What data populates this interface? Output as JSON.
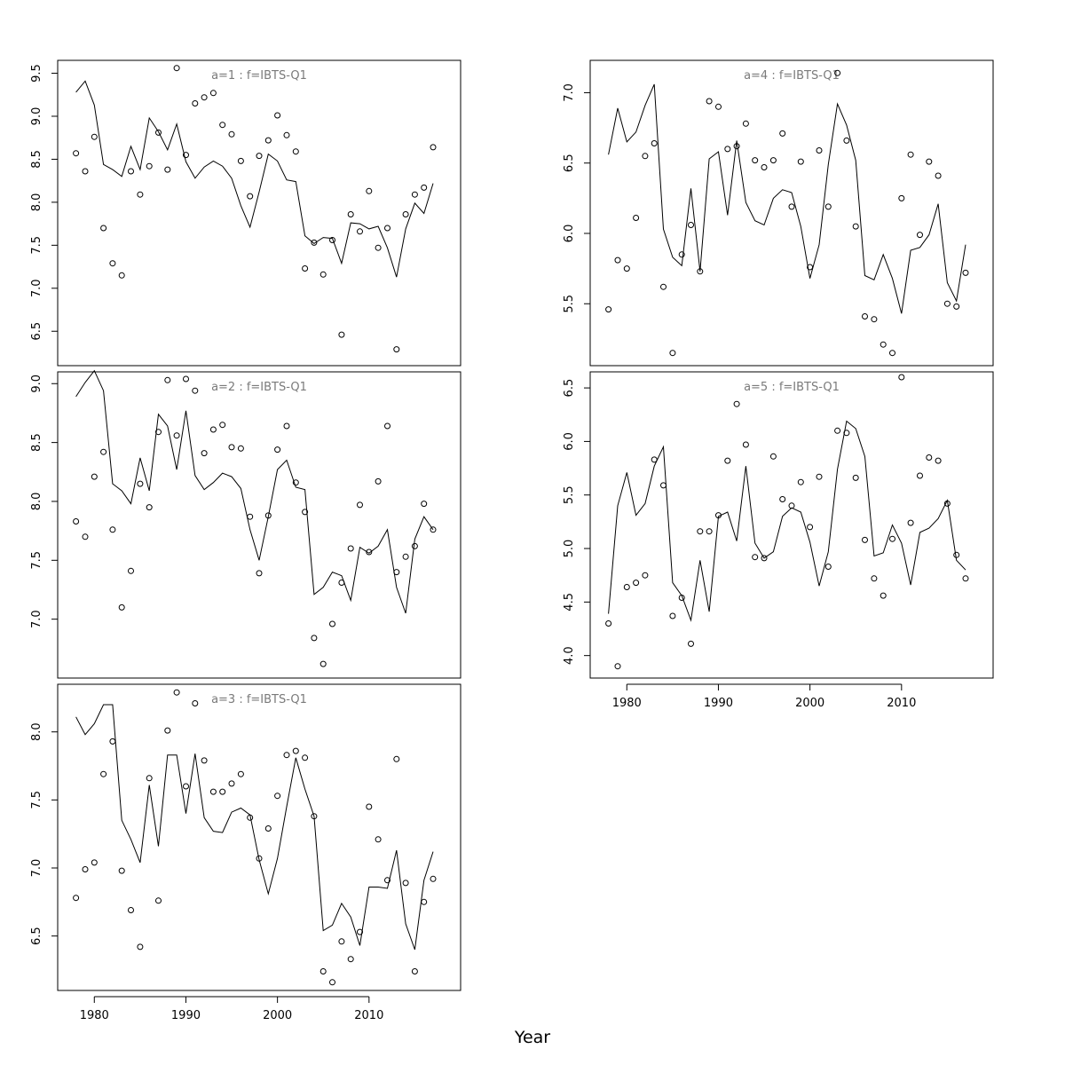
{
  "figure": {
    "xlabel": "Year"
  },
  "chart_data": [
    {
      "type": "line",
      "title": "a=1  :  f=IBTS-Q1",
      "xlabel": "Year",
      "ylabel": "",
      "xlim": [
        1976,
        2020
      ],
      "ylim": [
        6.1,
        9.65
      ],
      "xticks": [
        1980,
        1990,
        2000,
        2010
      ],
      "yticks": [
        6.5,
        7.0,
        7.5,
        8.0,
        8.5,
        9.0,
        9.5
      ],
      "show_x_axis": false,
      "x": [
        1978,
        1979,
        1980,
        1981,
        1982,
        1983,
        1984,
        1985,
        1986,
        1987,
        1988,
        1989,
        1990,
        1991,
        1992,
        1993,
        1994,
        1995,
        1996,
        1997,
        1998,
        1999,
        2000,
        2001,
        2002,
        2003,
        2004,
        2005,
        2006,
        2007,
        2008,
        2009,
        2010,
        2011,
        2012,
        2013,
        2014,
        2015,
        2016,
        2017
      ],
      "series": [
        {
          "style": "points",
          "values": [
            8.57,
            8.36,
            8.76,
            7.7,
            7.29,
            7.15,
            8.36,
            8.09,
            8.42,
            8.81,
            8.38,
            9.56,
            8.55,
            9.15,
            9.22,
            9.27,
            8.9,
            8.79,
            8.48,
            8.07,
            8.54,
            8.72,
            9.01,
            8.78,
            8.59,
            7.23,
            7.53,
            7.16,
            7.56,
            6.46,
            7.86,
            7.66,
            8.13,
            7.47,
            7.7,
            6.29,
            7.86,
            8.09,
            8.17,
            8.64
          ]
        },
        {
          "style": "line",
          "values": [
            9.28,
            9.41,
            9.13,
            8.44,
            8.38,
            8.3,
            8.65,
            8.38,
            8.98,
            8.82,
            8.61,
            8.91,
            8.47,
            8.28,
            8.41,
            8.48,
            8.42,
            8.28,
            7.96,
            7.71,
            8.12,
            8.56,
            8.48,
            8.26,
            8.24,
            7.61,
            7.52,
            7.59,
            7.58,
            7.29,
            7.76,
            7.75,
            7.69,
            7.72,
            7.47,
            7.13,
            7.69,
            7.99,
            7.87,
            8.22
          ]
        }
      ]
    },
    {
      "type": "line",
      "title": "a=2  :  f=IBTS-Q1",
      "xlabel": "Year",
      "ylabel": "",
      "xlim": [
        1976,
        2020
      ],
      "ylim": [
        6.5,
        9.1
      ],
      "xticks": [
        1980,
        1990,
        2000,
        2010
      ],
      "yticks": [
        7.0,
        7.5,
        8.0,
        8.5,
        9.0
      ],
      "show_x_axis": false,
      "x": [
        1978,
        1979,
        1980,
        1981,
        1982,
        1983,
        1984,
        1985,
        1986,
        1987,
        1988,
        1989,
        1990,
        1991,
        1992,
        1993,
        1994,
        1995,
        1996,
        1997,
        1998,
        1999,
        2000,
        2001,
        2002,
        2003,
        2004,
        2005,
        2006,
        2007,
        2008,
        2009,
        2010,
        2011,
        2012,
        2013,
        2014,
        2015,
        2016,
        2017
      ],
      "series": [
        {
          "style": "points",
          "values": [
            7.83,
            7.7,
            8.21,
            8.42,
            7.76,
            7.1,
            7.41,
            8.15,
            7.95,
            8.59,
            9.03,
            8.56,
            9.04,
            8.94,
            8.41,
            8.61,
            8.65,
            8.46,
            8.45,
            7.87,
            7.39,
            7.88,
            8.44,
            8.64,
            8.16,
            7.91,
            6.84,
            6.62,
            6.96,
            7.31,
            7.6,
            7.97,
            7.57,
            8.17,
            8.64,
            7.4,
            7.53,
            7.62,
            7.98,
            7.76
          ]
        },
        {
          "style": "line",
          "values": [
            8.89,
            9.01,
            9.11,
            8.94,
            8.15,
            8.09,
            7.98,
            8.37,
            8.09,
            8.74,
            8.64,
            8.27,
            8.77,
            8.22,
            8.1,
            8.16,
            8.24,
            8.21,
            8.11,
            7.76,
            7.5,
            7.87,
            8.27,
            8.35,
            8.12,
            8.1,
            7.21,
            7.27,
            7.4,
            7.37,
            7.16,
            7.61,
            7.56,
            7.62,
            7.76,
            7.27,
            7.05,
            7.68,
            7.87,
            7.76
          ]
        }
      ]
    },
    {
      "type": "line",
      "title": "a=3  :  f=IBTS-Q1",
      "xlabel": "Year",
      "ylabel": "",
      "xlim": [
        1976,
        2020
      ],
      "ylim": [
        6.1,
        8.35
      ],
      "xticks": [
        1980,
        1990,
        2000,
        2010
      ],
      "yticks": [
        6.5,
        7.0,
        7.5,
        8.0
      ],
      "show_x_axis": true,
      "x": [
        1978,
        1979,
        1980,
        1981,
        1982,
        1983,
        1984,
        1985,
        1986,
        1987,
        1988,
        1989,
        1990,
        1991,
        1992,
        1993,
        1994,
        1995,
        1996,
        1997,
        1998,
        1999,
        2000,
        2001,
        2002,
        2003,
        2004,
        2005,
        2006,
        2007,
        2008,
        2009,
        2010,
        2011,
        2012,
        2013,
        2014,
        2015,
        2016,
        2017
      ],
      "series": [
        {
          "style": "points",
          "values": [
            6.78,
            6.99,
            7.04,
            7.69,
            7.93,
            6.98,
            6.69,
            6.42,
            7.66,
            6.76,
            8.01,
            8.29,
            7.6,
            8.21,
            7.79,
            7.56,
            7.56,
            7.62,
            7.69,
            7.37,
            7.07,
            7.29,
            7.53,
            7.83,
            7.86,
            7.81,
            7.38,
            6.24,
            6.16,
            6.46,
            6.33,
            6.53,
            7.45,
            7.21,
            6.91,
            7.8,
            6.89,
            6.24,
            6.75,
            6.92
          ]
        },
        {
          "style": "line",
          "values": [
            8.11,
            7.98,
            8.06,
            8.2,
            8.2,
            7.35,
            7.21,
            7.04,
            7.61,
            7.16,
            7.83,
            7.83,
            7.4,
            7.84,
            7.37,
            7.27,
            7.26,
            7.41,
            7.44,
            7.39,
            7.06,
            6.81,
            7.07,
            7.45,
            7.81,
            7.58,
            7.38,
            6.54,
            6.58,
            6.74,
            6.64,
            6.43,
            6.86,
            6.86,
            6.85,
            7.13,
            6.59,
            6.4,
            6.91,
            7.12
          ]
        }
      ]
    },
    {
      "type": "line",
      "title": "a=4  :  f=IBTS-Q1",
      "xlabel": "Year",
      "ylabel": "",
      "xlim": [
        1976,
        2020
      ],
      "ylim": [
        5.06,
        7.23
      ],
      "xticks": [
        1980,
        1990,
        2000,
        2010
      ],
      "yticks": [
        5.5,
        6.0,
        6.5,
        7.0
      ],
      "show_x_axis": false,
      "x": [
        1978,
        1979,
        1980,
        1981,
        1982,
        1983,
        1984,
        1985,
        1986,
        1987,
        1988,
        1989,
        1990,
        1991,
        1992,
        1993,
        1994,
        1995,
        1996,
        1997,
        1998,
        1999,
        2000,
        2001,
        2002,
        2003,
        2004,
        2005,
        2006,
        2007,
        2008,
        2009,
        2010,
        2011,
        2012,
        2013,
        2014,
        2015,
        2016,
        2017
      ],
      "series": [
        {
          "style": "points",
          "values": [
            5.46,
            5.81,
            5.75,
            6.11,
            6.55,
            6.64,
            5.62,
            5.15,
            5.85,
            6.06,
            5.73,
            6.94,
            6.9,
            6.6,
            6.62,
            6.78,
            6.52,
            6.47,
            6.52,
            6.71,
            6.19,
            6.51,
            5.76,
            6.59,
            6.19,
            7.14,
            6.66,
            6.05,
            5.41,
            5.39,
            5.21,
            5.15,
            6.25,
            6.56,
            5.99,
            6.51,
            6.41,
            5.5,
            5.48,
            5.72
          ]
        },
        {
          "style": "line",
          "values": [
            6.56,
            6.89,
            6.65,
            6.72,
            6.91,
            7.06,
            6.03,
            5.83,
            5.77,
            6.32,
            5.73,
            6.53,
            6.58,
            6.13,
            6.66,
            6.22,
            6.09,
            6.06,
            6.25,
            6.31,
            6.29,
            6.05,
            5.68,
            5.92,
            6.49,
            6.92,
            6.77,
            6.52,
            5.7,
            5.67,
            5.85,
            5.68,
            5.43,
            5.88,
            5.9,
            5.99,
            6.21,
            5.65,
            5.52,
            5.92
          ]
        }
      ]
    },
    {
      "type": "line",
      "title": "a=5  :  f=IBTS-Q1",
      "xlabel": "Year",
      "ylabel": "",
      "xlim": [
        1976,
        2020
      ],
      "ylim": [
        3.79,
        6.65
      ],
      "xticks": [
        1980,
        1990,
        2000,
        2010
      ],
      "yticks": [
        4.0,
        4.5,
        5.0,
        5.5,
        6.0,
        6.5
      ],
      "show_x_axis": true,
      "x": [
        1978,
        1979,
        1980,
        1981,
        1982,
        1983,
        1984,
        1985,
        1986,
        1987,
        1988,
        1989,
        1990,
        1991,
        1992,
        1993,
        1994,
        1995,
        1996,
        1997,
        1998,
        1999,
        2000,
        2001,
        2002,
        2003,
        2004,
        2005,
        2006,
        2007,
        2008,
        2009,
        2010,
        2011,
        2012,
        2013,
        2014,
        2015,
        2016,
        2017
      ],
      "series": [
        {
          "style": "points",
          "values": [
            4.3,
            3.9,
            4.64,
            4.68,
            4.75,
            5.83,
            5.59,
            4.37,
            4.54,
            4.11,
            5.16,
            5.16,
            5.31,
            5.82,
            6.35,
            5.97,
            4.92,
            4.91,
            5.86,
            5.46,
            5.4,
            5.62,
            5.2,
            5.67,
            4.83,
            6.1,
            6.08,
            5.66,
            5.08,
            4.72,
            4.56,
            5.09,
            6.6,
            5.24,
            5.68,
            5.85,
            5.82,
            5.42,
            4.94,
            4.72
          ]
        },
        {
          "style": "line",
          "values": [
            4.39,
            5.4,
            5.71,
            5.31,
            5.42,
            5.77,
            5.95,
            4.68,
            4.56,
            4.33,
            4.89,
            4.41,
            5.3,
            5.34,
            5.07,
            5.77,
            5.05,
            4.91,
            4.97,
            5.3,
            5.38,
            5.34,
            5.06,
            4.65,
            4.97,
            5.74,
            6.19,
            6.12,
            5.86,
            4.93,
            4.96,
            5.22,
            5.05,
            4.66,
            5.15,
            5.19,
            5.28,
            5.45,
            4.89,
            4.8
          ]
        }
      ]
    }
  ]
}
